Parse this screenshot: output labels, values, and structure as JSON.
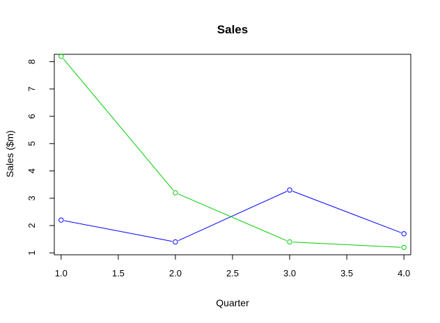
{
  "chart_data": {
    "type": "line",
    "title": "Sales",
    "xlabel": "Quarter",
    "ylabel": "Sales ($m)",
    "xlim": [
      0.94,
      4.06
    ],
    "ylim": [
      0.93,
      8.27
    ],
    "xticks": [
      1.0,
      1.5,
      2.0,
      2.5,
      3.0,
      3.5,
      4.0
    ],
    "xtick_labels": [
      "1.0",
      "1.5",
      "2.0",
      "2.5",
      "3.0",
      "3.5",
      "4.0"
    ],
    "yticks": [
      1,
      2,
      3,
      4,
      5,
      6,
      7,
      8
    ],
    "ytick_labels": [
      "1",
      "2",
      "3",
      "4",
      "5",
      "6",
      "7",
      "8"
    ],
    "grid": false,
    "legend": "none",
    "series": [
      {
        "color": "#0000ff",
        "marker": "open-circle",
        "x": [
          1,
          2,
          3,
          4
        ],
        "y": [
          2.2,
          1.4,
          3.3,
          1.7
        ]
      },
      {
        "color": "#00cc00",
        "marker": "open-circle",
        "x": [
          1,
          2,
          3,
          4
        ],
        "y": [
          8.2,
          3.2,
          1.4,
          1.2
        ]
      }
    ]
  }
}
